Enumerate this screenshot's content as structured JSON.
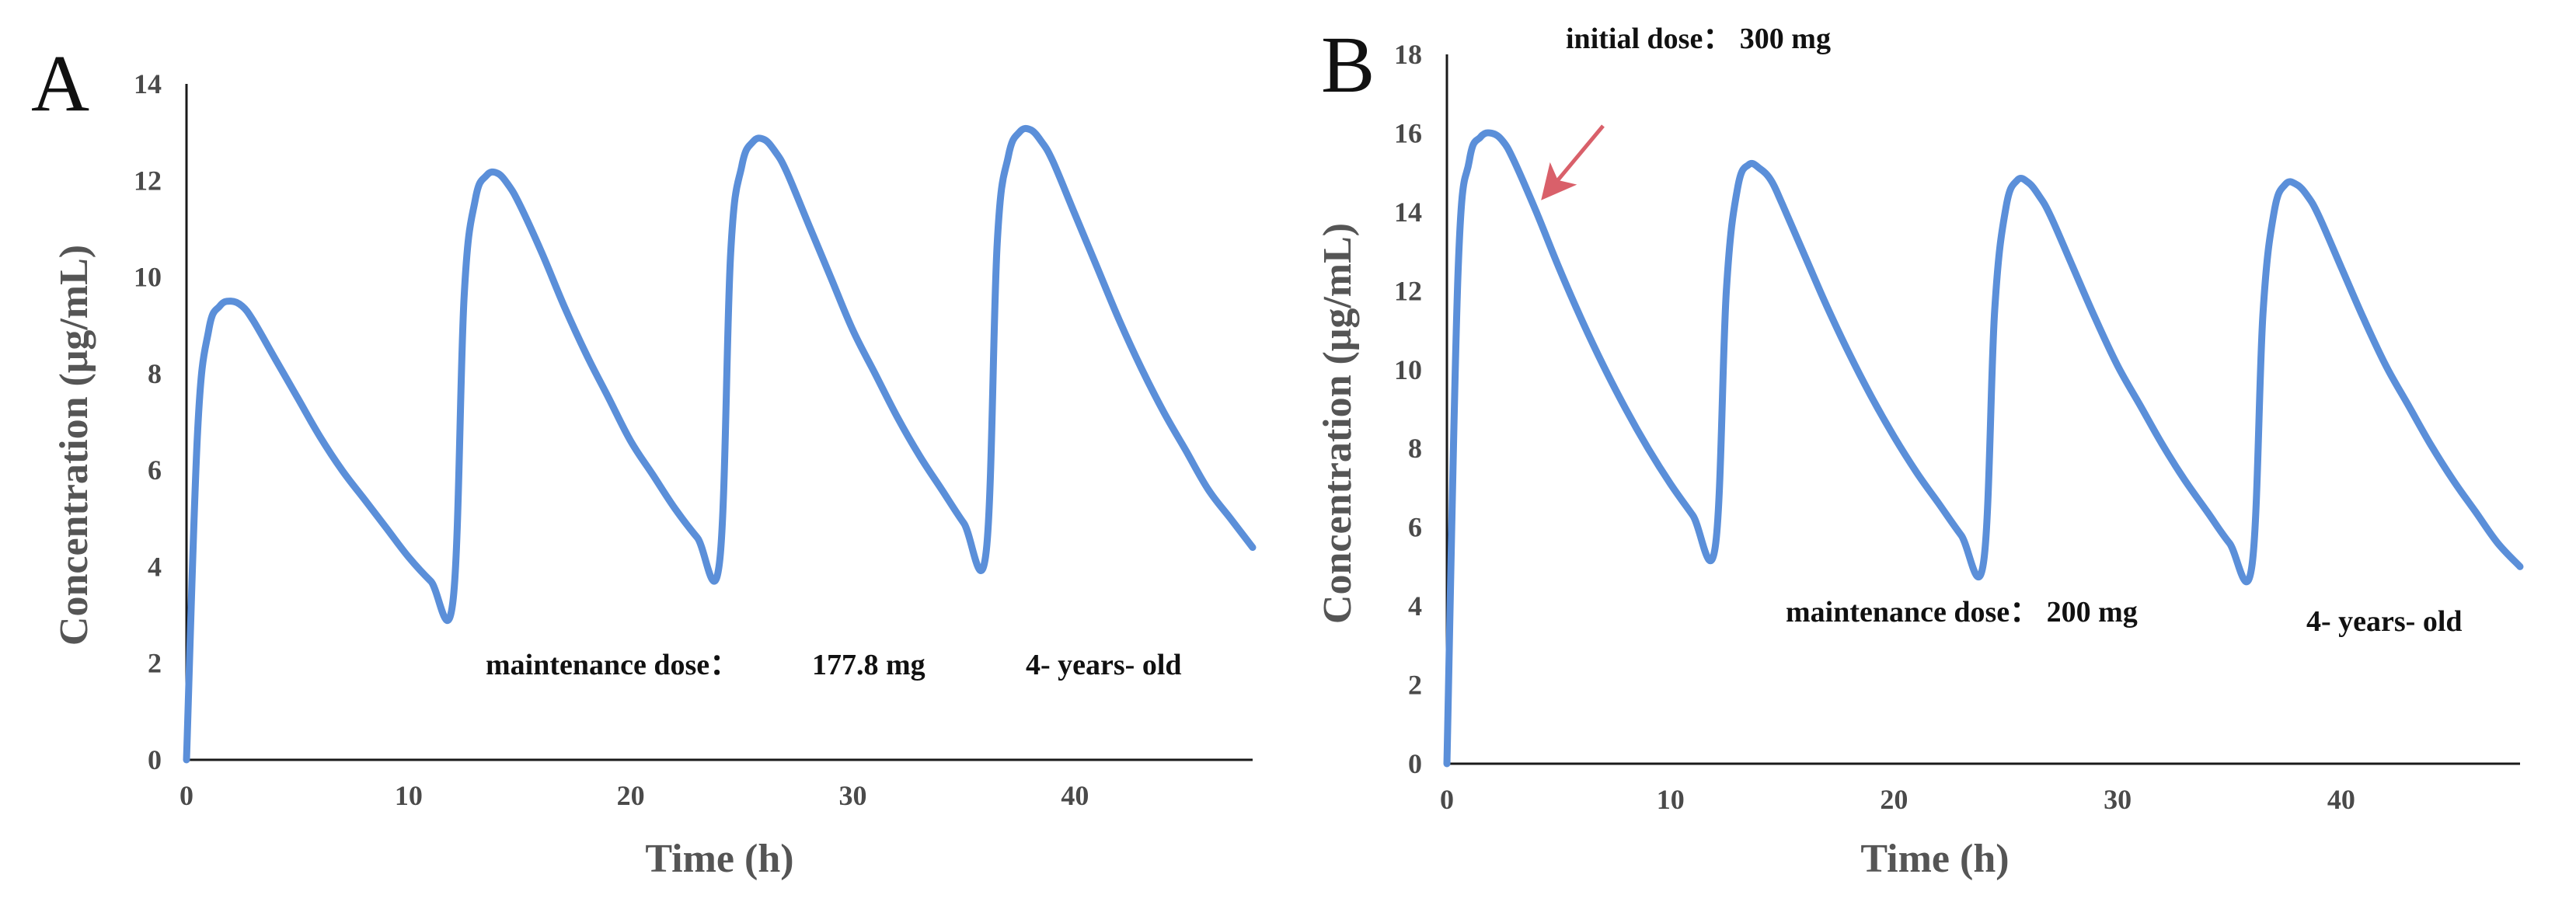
{
  "colors": {
    "series": "#5b8fd9",
    "arrow": "#d9606a"
  },
  "chart_data": [
    {
      "type": "line",
      "panel_label": "A",
      "xlabel": "Time (h)",
      "ylabel": "Concentration (μg/mL)",
      "xlim": [
        0,
        48
      ],
      "ylim": [
        0,
        14
      ],
      "xticks": [
        0,
        10,
        20,
        30,
        40
      ],
      "yticks": [
        0,
        2,
        4,
        6,
        8,
        10,
        12,
        14
      ],
      "dose_interval_h": 12,
      "series": [
        {
          "x": [
            0,
            0.5,
            1,
            1.5,
            2,
            2.5,
            3,
            4,
            5,
            6,
            7,
            8,
            9,
            10,
            11,
            12,
            12.5,
            13,
            13.5,
            14,
            14.5,
            15,
            16,
            17,
            18,
            19,
            20,
            21,
            22,
            23,
            24,
            24.5,
            25,
            25.5,
            26,
            26.5,
            27,
            28,
            29,
            30,
            31,
            32,
            33,
            34,
            35,
            36,
            36.5,
            37,
            37.5,
            38,
            38.5,
            39,
            40,
            41,
            42,
            43,
            44,
            45,
            46,
            47,
            48
          ],
          "values": [
            0,
            6.8,
            8.9,
            9.4,
            9.5,
            9.4,
            9.1,
            8.3,
            7.5,
            6.7,
            6.0,
            5.4,
            4.8,
            4.2,
            3.7,
            3.3,
            9.6,
            11.6,
            12.1,
            12.15,
            11.9,
            11.5,
            10.5,
            9.4,
            8.4,
            7.5,
            6.6,
            5.9,
            5.2,
            4.6,
            4.1,
            10.5,
            12.3,
            12.8,
            12.85,
            12.6,
            12.2,
            11.1,
            10.0,
            8.9,
            8.0,
            7.1,
            6.3,
            5.6,
            4.9,
            4.3,
            10.7,
            12.5,
            13.0,
            13.05,
            12.8,
            12.4,
            11.3,
            10.2,
            9.1,
            8.1,
            7.2,
            6.4,
            5.6,
            5.0,
            4.4
          ]
        }
      ],
      "annotations": {
        "maintenance": "maintenance dose：",
        "maintenance_value": "177.8 mg",
        "age": "4- years- old"
      }
    },
    {
      "type": "line",
      "panel_label": "B",
      "xlabel": "Time (h)",
      "ylabel": "Concentration (μg/mL)",
      "xlim": [
        0,
        48
      ],
      "ylim": [
        0,
        18
      ],
      "xticks": [
        0,
        10,
        20,
        30,
        40
      ],
      "yticks": [
        0,
        2,
        4,
        6,
        8,
        10,
        12,
        14,
        16,
        18
      ],
      "dose_interval_h": 12,
      "series": [
        {
          "x": [
            0,
            0.5,
            1,
            1.5,
            2,
            2.5,
            3,
            4,
            5,
            6,
            7,
            8,
            9,
            10,
            11,
            12,
            12.5,
            13,
            13.5,
            14,
            14.5,
            15,
            16,
            17,
            18,
            19,
            20,
            21,
            22,
            23,
            24,
            24.5,
            25,
            25.5,
            26,
            26.5,
            27,
            28,
            29,
            30,
            31,
            32,
            33,
            34,
            35,
            36,
            36.5,
            37,
            37.5,
            38,
            38.5,
            39,
            40,
            41,
            42,
            43,
            44,
            45,
            46,
            47,
            48
          ],
          "values": [
            0,
            12.5,
            15.3,
            15.9,
            16.0,
            15.8,
            15.3,
            14.0,
            12.6,
            11.3,
            10.1,
            9.0,
            8.0,
            7.1,
            6.3,
            5.5,
            12.0,
            14.6,
            15.2,
            15.1,
            14.8,
            14.2,
            12.9,
            11.6,
            10.4,
            9.3,
            8.3,
            7.4,
            6.6,
            5.8,
            5.1,
            11.5,
            14.1,
            14.8,
            14.75,
            14.4,
            13.9,
            12.6,
            11.3,
            10.1,
            9.1,
            8.1,
            7.2,
            6.4,
            5.6,
            5.0,
            11.4,
            14.0,
            14.7,
            14.7,
            14.4,
            13.9,
            12.6,
            11.3,
            10.1,
            9.1,
            8.1,
            7.2,
            6.4,
            5.6,
            5.0
          ]
        }
      ],
      "annotations": {
        "initial": "initial dose： 300 mg",
        "maintenance": "maintenance dose： 200 mg",
        "age": "4- years- old"
      }
    }
  ]
}
